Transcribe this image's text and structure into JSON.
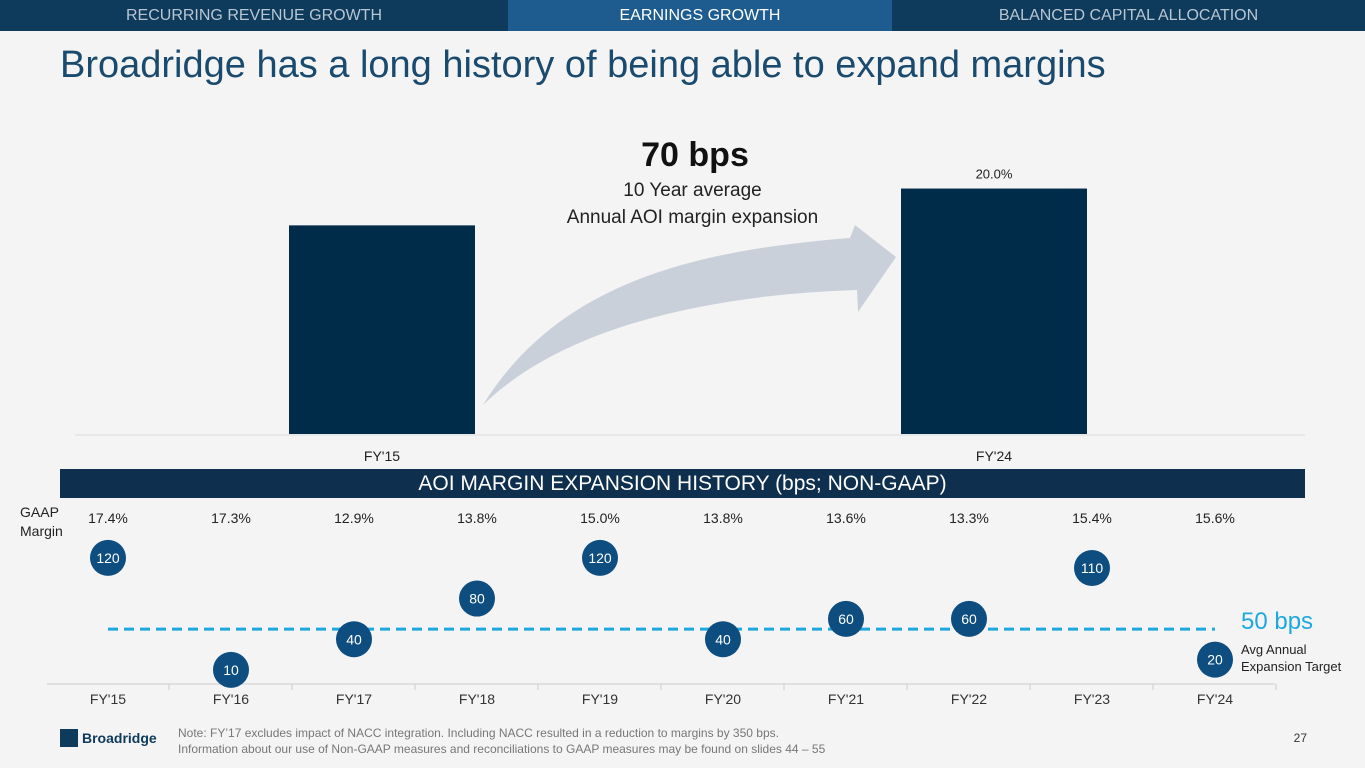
{
  "tabs": [
    "RECURRING REVENUE GROWTH",
    "EARNINGS GROWTH",
    "BALANCED CAPITAL ALLOCATION"
  ],
  "active_tab": 1,
  "title": "Broadridge has a long history of being able to expand margins",
  "callout": {
    "value": "70 bps",
    "line1": "10 Year average",
    "line2": "Annual AOI margin expansion"
  },
  "banner": "AOI MARGIN EXPANSION HISTORY (bps; NON-GAAP)",
  "gaap_label": "GAAP Margin",
  "target": {
    "value": "50 bps",
    "label1": "Avg Annual",
    "label2": "Expansion Target"
  },
  "note1": "Note: FY’17 excludes impact of NACC integration. Including NACC resulted in a reduction to margins by 350 bps.",
  "note2": "Information about our use of Non-GAAP measures and reconciliations to GAAP measures may be found on slides 44 – 55",
  "logo": "Broadridge",
  "page_number": "27",
  "colors": {
    "bar": "#002b49",
    "dot": "#0e4d80",
    "target_line": "#1fa8e0",
    "arrow": "#c9d0da"
  },
  "chart_data": [
    {
      "type": "bar",
      "categories": [
        "FY'15",
        "FY'24"
      ],
      "values": [
        17.0,
        20.0
      ],
      "data_labels": [
        "",
        "20.0%"
      ],
      "ylim": [
        0,
        22
      ]
    },
    {
      "type": "scatter",
      "categories": [
        "FY'15",
        "FY'16",
        "FY'17",
        "FY'18",
        "FY'19",
        "FY'20",
        "FY'21",
        "FY'22",
        "FY'23",
        "FY'24"
      ],
      "values": [
        120,
        10,
        40,
        80,
        120,
        40,
        60,
        60,
        110,
        20
      ],
      "gaap_margin": [
        "17.4%",
        "17.3%",
        "12.9%",
        "13.8%",
        "15.0%",
        "13.8%",
        "13.6%",
        "13.3%",
        "15.4%",
        "15.6%"
      ],
      "target_line": 50,
      "ylim": [
        0,
        130
      ]
    }
  ]
}
